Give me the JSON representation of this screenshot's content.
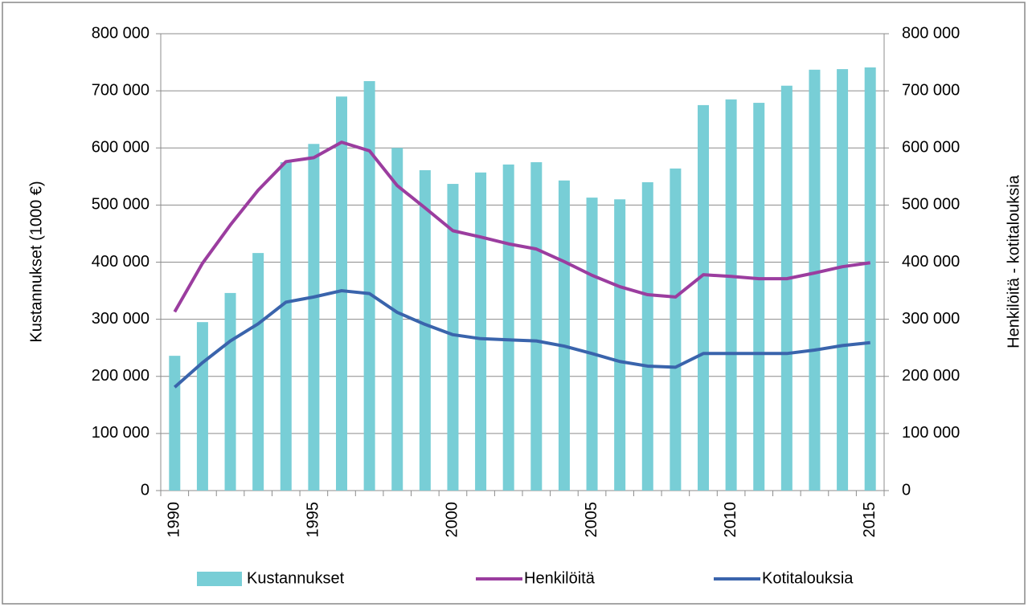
{
  "chart_data": {
    "type": "bar_line",
    "ylabel": "Kustannukset (1000 €)",
    "y2label": "Henkilöitä - kotitalouksia",
    "categories": [
      "1990",
      null,
      null,
      null,
      null,
      "1995",
      null,
      null,
      null,
      null,
      "2000",
      null,
      null,
      null,
      null,
      "2005",
      null,
      null,
      null,
      null,
      "2010",
      null,
      null,
      null,
      null,
      "2015"
    ],
    "series": [
      {
        "name": "Kustannukset",
        "type": "bar",
        "color": "#78ced6",
        "values": [
          236000,
          295000,
          346000,
          416000,
          575000,
          607000,
          690000,
          717000,
          600000,
          561000,
          537000,
          557000,
          571000,
          575000,
          543000,
          513000,
          510000,
          540000,
          564000,
          675000,
          685000,
          679000,
          709000,
          737000,
          738000,
          741000
        ]
      },
      {
        "name": "Henkilöitä",
        "type": "line",
        "axis": "y2",
        "color": "#9b3d9f",
        "values": [
          313000,
          398000,
          465000,
          526000,
          576000,
          583000,
          610000,
          595000,
          534000,
          495000,
          455000,
          444000,
          432000,
          423000,
          401000,
          377000,
          357000,
          343000,
          339000,
          378000,
          375000,
          371000,
          371000,
          381000,
          392000,
          399000
        ]
      },
      {
        "name": "Kotitalouksia",
        "type": "line",
        "axis": "y2",
        "color": "#3a64ac",
        "values": [
          181000,
          224000,
          262000,
          292000,
          330000,
          339000,
          350000,
          345000,
          312000,
          291000,
          273000,
          266000,
          264000,
          262000,
          253000,
          240000,
          226000,
          218000,
          216000,
          240000,
          240000,
          240000,
          240000,
          246000,
          254000,
          259000
        ]
      }
    ],
    "ylim": [
      0,
      800000
    ],
    "yticks": [
      {
        "value": 0,
        "label": "0"
      },
      {
        "value": 100000,
        "label": "100 000"
      },
      {
        "value": 200000,
        "label": "200 000"
      },
      {
        "value": 300000,
        "label": "300 000"
      },
      {
        "value": 400000,
        "label": "400 000"
      },
      {
        "value": 500000,
        "label": "500 000"
      },
      {
        "value": 600000,
        "label": "600 000"
      },
      {
        "value": 700000,
        "label": "700 000"
      },
      {
        "value": 800000,
        "label": "800 000"
      }
    ],
    "y2lim": [
      0,
      800000
    ],
    "y2ticks": [
      {
        "value": 0,
        "label": "0"
      },
      {
        "value": 100000,
        "label": "100 000"
      },
      {
        "value": 200000,
        "label": "200 000"
      },
      {
        "value": 300000,
        "label": "300 000"
      },
      {
        "value": 400000,
        "label": "400 000"
      },
      {
        "value": 500000,
        "label": "500 000"
      },
      {
        "value": 600000,
        "label": "600 000"
      },
      {
        "value": 700000,
        "label": "700 000"
      },
      {
        "value": 800000,
        "label": "800 000"
      }
    ],
    "grid": true,
    "legend": "bottom"
  }
}
